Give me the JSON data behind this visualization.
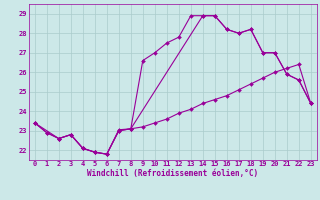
{
  "xlabel": "Windchill (Refroidissement éolien,°C)",
  "bg_color": "#cce8e8",
  "line_color": "#990099",
  "grid_color": "#aacccc",
  "xlim": [
    -0.5,
    23.5
  ],
  "ylim": [
    21.5,
    29.5
  ],
  "yticks": [
    22,
    23,
    24,
    25,
    26,
    27,
    28,
    29
  ],
  "xticks": [
    0,
    1,
    2,
    3,
    4,
    5,
    6,
    7,
    8,
    9,
    10,
    11,
    12,
    13,
    14,
    15,
    16,
    17,
    18,
    19,
    20,
    21,
    22,
    23
  ],
  "series1_x": [
    0,
    1,
    2,
    3,
    4,
    5,
    6,
    7,
    8,
    9,
    10,
    11,
    12,
    13,
    14,
    15,
    16,
    17,
    18,
    19,
    20,
    21,
    22,
    23
  ],
  "series1_y": [
    23.4,
    22.9,
    22.6,
    22.8,
    22.1,
    21.9,
    21.8,
    23.0,
    23.1,
    26.6,
    27.0,
    27.5,
    27.8,
    28.9,
    28.9,
    28.9,
    28.2,
    28.0,
    28.2,
    27.0,
    27.0,
    25.9,
    25.6,
    24.4
  ],
  "series2_x": [
    0,
    2,
    3,
    4,
    5,
    6,
    7,
    8,
    9,
    10,
    11,
    12,
    13,
    14,
    15,
    16,
    17,
    18,
    19,
    20,
    21,
    22,
    23
  ],
  "series2_y": [
    23.4,
    22.6,
    22.8,
    22.1,
    21.9,
    21.8,
    23.05,
    23.1,
    23.2,
    23.4,
    23.6,
    23.9,
    24.1,
    24.4,
    24.6,
    24.8,
    25.1,
    25.4,
    25.7,
    26.0,
    26.2,
    26.4,
    24.4
  ],
  "series3_x": [
    0,
    1,
    2,
    3,
    4,
    5,
    6,
    7,
    8,
    14,
    15,
    16,
    17,
    18,
    19,
    20,
    21,
    22,
    23
  ],
  "series3_y": [
    23.4,
    22.9,
    22.6,
    22.8,
    22.1,
    21.9,
    21.8,
    23.0,
    23.1,
    28.9,
    28.9,
    28.2,
    28.0,
    28.2,
    27.0,
    27.0,
    25.9,
    25.6,
    24.4
  ],
  "marker": "D",
  "marker_size": 2,
  "line_width": 0.8,
  "tick_fontsize": 5,
  "xlabel_fontsize": 5.5
}
